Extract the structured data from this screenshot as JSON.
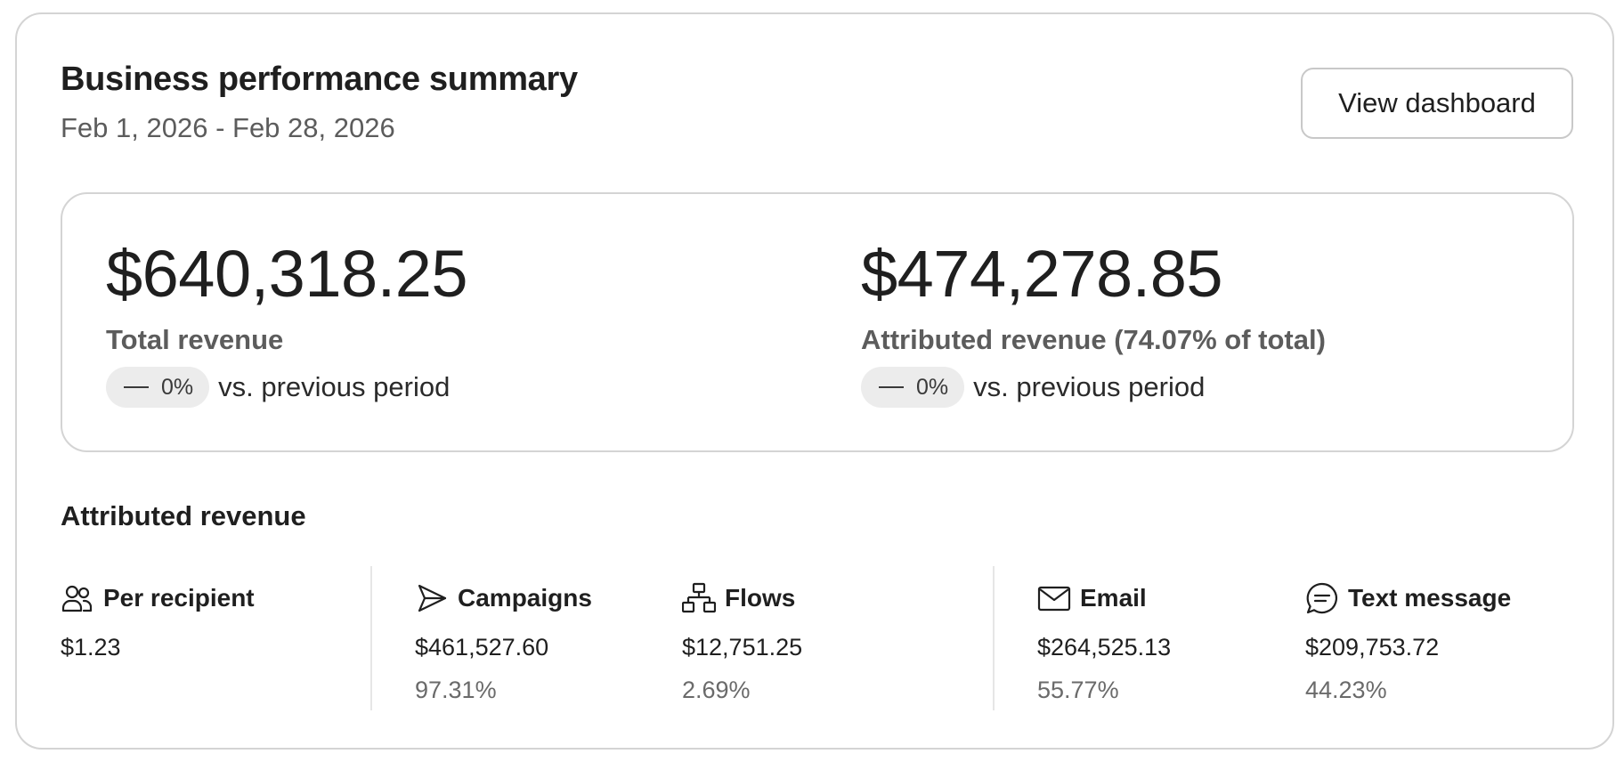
{
  "header": {
    "title": "Business performance summary",
    "date_range": "Feb 1, 2026 - Feb 28, 2026",
    "view_dashboard_label": "View dashboard"
  },
  "summary": {
    "total": {
      "value": "$640,318.25",
      "label": "Total revenue",
      "change": "0%",
      "compare_text": "vs. previous period"
    },
    "attributed": {
      "value": "$474,278.85",
      "label": "Attributed revenue (74.07% of total)",
      "change": "0%",
      "compare_text": "vs. previous period"
    }
  },
  "attributed_section": {
    "title": "Attributed revenue",
    "columns": [
      {
        "icon": "people-icon",
        "label": "Per recipient",
        "value": "$1.23",
        "pct": ""
      },
      {
        "icon": "send-icon",
        "label": "Campaigns",
        "value": "$461,527.60",
        "pct": "97.31%"
      },
      {
        "icon": "flows-icon",
        "label": "Flows",
        "value": "$12,751.25",
        "pct": "2.69%"
      },
      {
        "icon": "envelope-icon",
        "label": "Email",
        "value": "$264,525.13",
        "pct": "55.77%"
      },
      {
        "icon": "chat-bubble-icon",
        "label": "Text message",
        "value": "$209,753.72",
        "pct": "44.23%"
      }
    ]
  },
  "colors": {
    "text_primary": "#1f1f1f",
    "text_secondary": "#5c5c5c",
    "border": "#d4d4d4",
    "pill_bg": "#ececec"
  }
}
